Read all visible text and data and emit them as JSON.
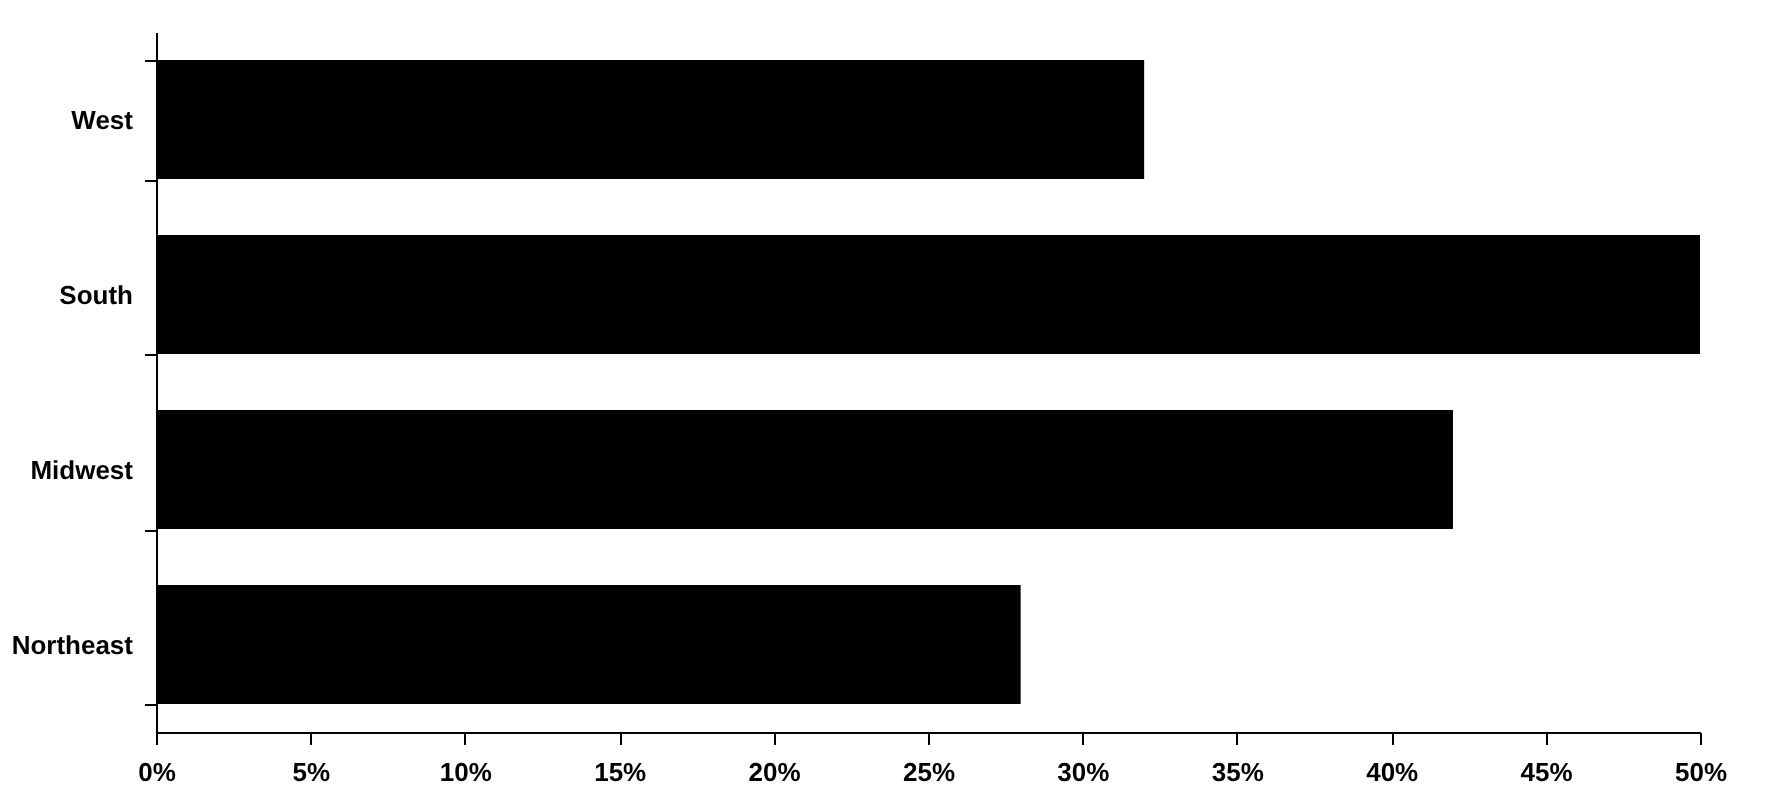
{
  "chart_data": {
    "type": "bar",
    "orientation": "horizontal",
    "categories": [
      "West",
      "South",
      "Midwest",
      "Northeast"
    ],
    "values": [
      32,
      50,
      42,
      28
    ],
    "color": "#000000",
    "xlim": [
      0,
      50
    ],
    "xticks": [
      {
        "value": 0,
        "label": "0%"
      },
      {
        "value": 5,
        "label": "5%"
      },
      {
        "value": 10,
        "label": "10%"
      },
      {
        "value": 15,
        "label": "15%"
      },
      {
        "value": 20,
        "label": "20%"
      },
      {
        "value": 25,
        "label": "25%"
      },
      {
        "value": 30,
        "label": "30%"
      },
      {
        "value": 35,
        "label": "35%"
      },
      {
        "value": 40,
        "label": "40%"
      },
      {
        "value": 45,
        "label": "45%"
      },
      {
        "value": 50,
        "label": "50%"
      }
    ],
    "grid": false
  }
}
